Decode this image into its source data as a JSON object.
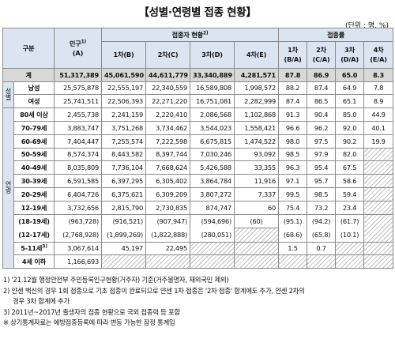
{
  "title": "【성별·연령별 접종 현황】",
  "unit": "(단위 : 명, %)",
  "header": {
    "category": "구분",
    "population": "인구",
    "population_sup": "1)",
    "population_code": "(A)",
    "vaccinated_group": "접종자 현황",
    "vaccinated_sup": "2)",
    "rate_group": "접종률",
    "dose1": "1차(B)",
    "dose2": "2차(C)",
    "dose3": "3차(D)",
    "dose4": "4차(E)",
    "rate1": "1차",
    "rate1_code": "(B/A)",
    "rate2": "2차",
    "rate2_code": "(C/A)",
    "rate3": "3차",
    "rate3_code": "(D/A)",
    "rate4": "4차",
    "rate4_code": "(E/A)"
  },
  "total": {
    "label": "계",
    "pop": "51,317,389",
    "d1": "45,061,590",
    "d2": "44,611,779",
    "d3": "33,340,889",
    "d4": "4,281,571",
    "r1": "87.8",
    "r2": "86.9",
    "r3": "65.0",
    "r4": "8.3"
  },
  "sex_label": "성별",
  "age_label": "연령",
  "sex_rows": [
    {
      "label": "남성",
      "pop": "25,575,878",
      "d1": "22,555,197",
      "d2": "22,340,559",
      "d3": "16,589,808",
      "d4": "1,998,572",
      "r1": "88.2",
      "r2": "87.4",
      "r3": "64.9",
      "r4": "7.8"
    },
    {
      "label": "여성",
      "pop": "25,741,511",
      "d1": "22,506,393",
      "d2": "22,271,220",
      "d3": "16,751,081",
      "d4": "2,282,999",
      "r1": "87.4",
      "r2": "86.5",
      "r3": "65.1",
      "r4": "8.9"
    }
  ],
  "age_rows": [
    {
      "label": "80세 이상",
      "pop": "2,455,738",
      "d1": "2,241,159",
      "d2": "2,220,410",
      "d3": "2,086,568",
      "d4": "1,102,868",
      "r1": "91.3",
      "r2": "90.4",
      "r3": "85.0",
      "r4": "44.9"
    },
    {
      "label": "70-79세",
      "pop": "3,883,747",
      "d1": "3,751,268",
      "d2": "3,734,462",
      "d3": "3,544,023",
      "d4": "1,558,421",
      "r1": "96.6",
      "r2": "96.2",
      "r3": "92.0",
      "r4": "40.1"
    },
    {
      "label": "60-69세",
      "pop": "7,404,447",
      "d1": "7,255,574",
      "d2": "7,222,598",
      "d3": "6,675,815",
      "d4": "1,474,522",
      "r1": "98.0",
      "r2": "97.5",
      "r3": "90.2",
      "r4": "19.9"
    },
    {
      "label": "50-59세",
      "pop": "8,574,374",
      "d1": "8,443,582",
      "d2": "8,397,744",
      "d3": "7,030,246",
      "d4": "93,092",
      "r1": "98.5",
      "r2": "97.9",
      "r3": "82.0",
      "r4": ""
    },
    {
      "label": "40-49세",
      "pop": "8,035,809",
      "d1": "7,736,104",
      "d2": "7,668,624",
      "d3": "5,426,588",
      "d4": "33,355",
      "r1": "96.3",
      "r2": "95.4",
      "r3": "67.5",
      "r4": ""
    },
    {
      "label": "30-39세",
      "pop": "6,591,585",
      "d1": "6,397,295",
      "d2": "6,305,402",
      "d3": "3,864,784",
      "d4": "11,916",
      "r1": "97.1",
      "r2": "95.7",
      "r3": "58.6",
      "r4": ""
    },
    {
      "label": "20-29세",
      "pop": "6,404,726",
      "d1": "6,375,621",
      "d2": "6,309,209",
      "d3": "3,807,272",
      "d4": "7,337",
      "r1": "99.5",
      "r2": "98.5",
      "r3": "59.4",
      "r4": ""
    },
    {
      "label": "12-19세",
      "pop": "3,732,656",
      "d1": "2,815,790",
      "d2": "2,730,835",
      "d3": "874,747",
      "d4": "60",
      "r1": "75.4",
      "r2": "73.2",
      "r3": "23.4",
      "r4": ""
    }
  ],
  "sub_rows": {
    "labels": [
      "(18-19세)",
      "(12-17세)"
    ],
    "pops": [
      "(963,728)",
      "(2,768,928)"
    ],
    "d1": [
      "(916,521)",
      "(1,899,269)"
    ],
    "d2": [
      "(907,947)",
      "(1,822,888)"
    ],
    "d3": [
      "(594,696)",
      "(280,051)"
    ],
    "d4": "(60)",
    "r1": [
      "(95.1)",
      "(68.6)"
    ],
    "r2": [
      "(94.2)",
      "(65.8)"
    ],
    "r3": [
      "(61.7)",
      "(10.1)"
    ]
  },
  "row_5_11": {
    "label": "5-11세",
    "label_sup": "3)",
    "pop": "3,067,614",
    "d1": "45,197",
    "d2": "22,495",
    "r1": "1.5",
    "r2": "0.7"
  },
  "row_4under": {
    "label": "4세 이하",
    "pop": "1,166,693"
  },
  "notes": [
    "1) '21.12월 행정안전부 주민등록인구현황(거주자) 기준(거주불명자, 재외국민 제외)",
    "2) 얀센 백신의 경우 1회 접종으로 기초 접종이 완료되므로 얀센 1차 접종은 '2차 접종' 합계에도 추가, 얀센 2차의",
    "    경우 3차 합계에 추가",
    "3) 2011년~2017년 출생자의 접종 현황으로 국외 접종력 등 포함",
    "※ 상기통계자료는 예방접종등록에 따라 변동 가능한 잠정 통계임"
  ]
}
